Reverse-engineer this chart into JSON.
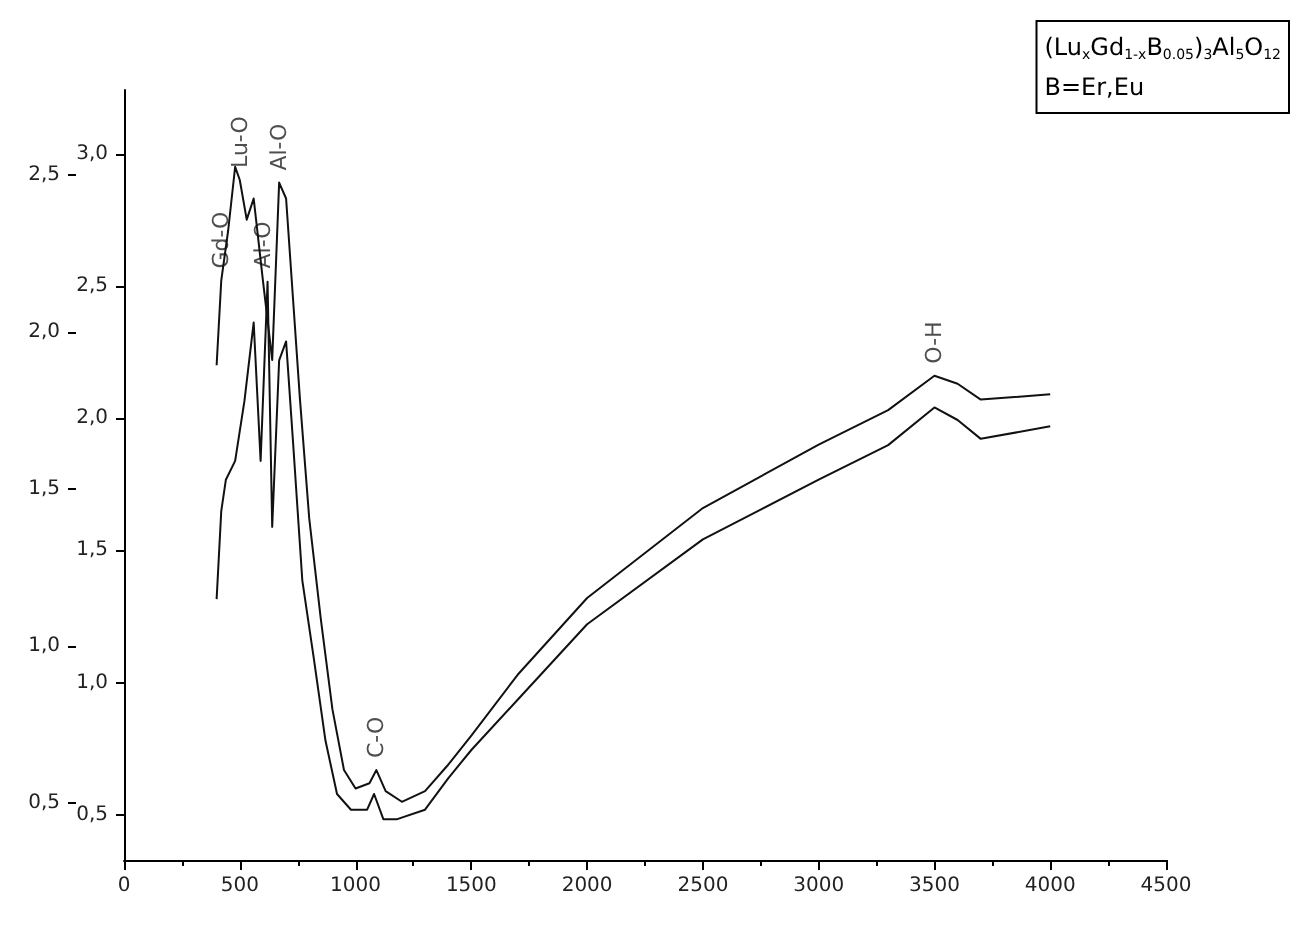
{
  "chart_data": {
    "type": "line",
    "xlim": [
      0,
      4500
    ],
    "xticks": [
      0,
      500,
      1000,
      1500,
      2000,
      2500,
      3000,
      3500,
      4000,
      4500
    ],
    "ylim": [
      0.33,
      3.24
    ],
    "yticks": [
      {
        "value": 0.5,
        "label": "0,5"
      },
      {
        "value": 1.0,
        "label": "1,0"
      },
      {
        "value": 1.5,
        "label": "1,5"
      },
      {
        "value": 2.0,
        "label": "2,0"
      },
      {
        "value": 2.5,
        "label": "2,5"
      },
      {
        "value": 3.0,
        "label": "3,0"
      }
    ],
    "y2lim": [
      0.32,
      2.77
    ],
    "y2ticks": [
      {
        "value": 0.5,
        "label": "0,5"
      },
      {
        "value": 1.0,
        "label": "1,0"
      },
      {
        "value": 1.5,
        "label": "1,5"
      },
      {
        "value": 2.0,
        "label": "2,0"
      },
      {
        "value": 2.5,
        "label": "2,5"
      }
    ],
    "marker": "none",
    "line_style": "solid",
    "series": [
      {
        "color": "#111111",
        "x": [
          400,
          420,
          450,
          480,
          500,
          530,
          560,
          600,
          640,
          670,
          700,
          730,
          760,
          800,
          850,
          900,
          950,
          1000,
          1060,
          1090,
          1130,
          1200,
          1300,
          1400,
          1500,
          1700,
          2000,
          2500,
          3000,
          3300,
          3500,
          3600,
          3700,
          4000
        ],
        "values": [
          2.2,
          2.52,
          2.71,
          2.95,
          2.9,
          2.75,
          2.83,
          2.52,
          2.22,
          2.89,
          2.83,
          2.45,
          2.07,
          1.62,
          1.24,
          0.9,
          0.67,
          0.6,
          0.62,
          0.67,
          0.59,
          0.55,
          0.59,
          0.69,
          0.8,
          1.03,
          1.32,
          1.66,
          1.9,
          2.03,
          2.16,
          2.13,
          2.07,
          2.09
        ]
      },
      {
        "color": "#111111",
        "axis": "y2",
        "x": [
          400,
          420,
          440,
          480,
          520,
          560,
          590,
          620,
          640,
          670,
          700,
          730,
          770,
          820,
          870,
          920,
          980,
          1050,
          1080,
          1120,
          1180,
          1300,
          1400,
          1500,
          1700,
          2000,
          2500,
          3000,
          3300,
          3500,
          3600,
          3700,
          4000
        ],
        "values": [
          1.15,
          1.43,
          1.53,
          1.59,
          1.78,
          2.03,
          1.59,
          2.16,
          1.38,
          1.91,
          1.97,
          1.65,
          1.21,
          0.96,
          0.7,
          0.53,
          0.48,
          0.48,
          0.53,
          0.45,
          0.45,
          0.48,
          0.58,
          0.67,
          0.83,
          1.07,
          1.34,
          1.53,
          1.64,
          1.76,
          1.72,
          1.66,
          1.7
        ]
      }
    ],
    "annotations": [
      {
        "text": "Gd-O",
        "x": 420,
        "y": 2.52
      },
      {
        "text": "Lu-O",
        "x": 500,
        "y": 2.9
      },
      {
        "text": "Al-O",
        "x": 600,
        "y": 2.52
      },
      {
        "text": "Al-O",
        "x": 670,
        "y": 2.89
      },
      {
        "text": "C-O",
        "x": 1090,
        "y": 0.67
      },
      {
        "text": "O-H",
        "x": 3500,
        "y": 2.16
      },
      "(Lu$_{x}$Gd$_{1-x}$B$_{0.05}$)$_{3}$Al$_{5}$O$_{12}$",
      "B=Er,Eu"
    ]
  }
}
